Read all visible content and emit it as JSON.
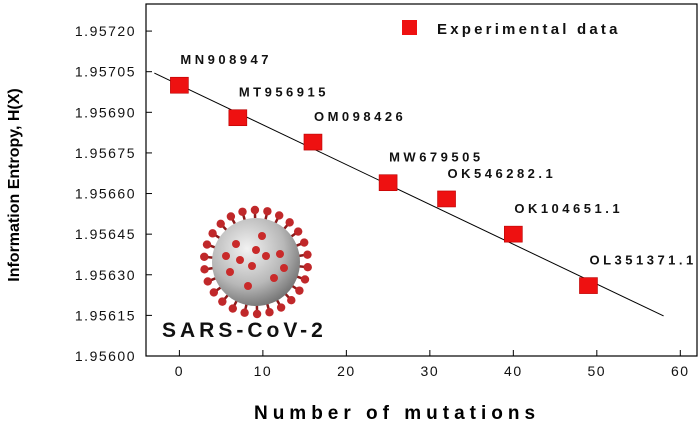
{
  "chart_data": {
    "type": "scatter",
    "xlabel": "Number of mutations",
    "ylabel": "Information Entropy, H(X)",
    "xlim": [
      -4,
      62
    ],
    "ylim": [
      1.956,
      1.9573
    ],
    "x_ticks": [
      0,
      10,
      20,
      30,
      40,
      50,
      60
    ],
    "y_ticks": [
      "1.95600",
      "1.95615",
      "1.95630",
      "1.95645",
      "1.95660",
      "1.95675",
      "1.95690",
      "1.95705",
      "1.95720"
    ],
    "grid": false,
    "legend_position": "top-right",
    "series": [
      {
        "name": "Experimental data",
        "color": "#ee1111",
        "marker": "square",
        "points": [
          {
            "x": 0,
            "y": 1.957,
            "label": "MN908947"
          },
          {
            "x": 7,
            "y": 1.95688,
            "label": "MT956915"
          },
          {
            "x": 16,
            "y": 1.95679,
            "label": "OM098426"
          },
          {
            "x": 25,
            "y": 1.95664,
            "label": "MW679505"
          },
          {
            "x": 32,
            "y": 1.95658,
            "label": "OK546282.1"
          },
          {
            "x": 40,
            "y": 1.95645,
            "label": "OK104651.1"
          },
          {
            "x": 49,
            "y": 1.95626,
            "label": "OL351371.1"
          }
        ]
      }
    ],
    "fit_line": {
      "x": [
        -3,
        58
      ],
      "y": [
        1.957045,
        1.956148
      ],
      "color": "#000000"
    },
    "annotation": "SARS-CoV-2",
    "image_icon": "coronavirus-illustration"
  }
}
